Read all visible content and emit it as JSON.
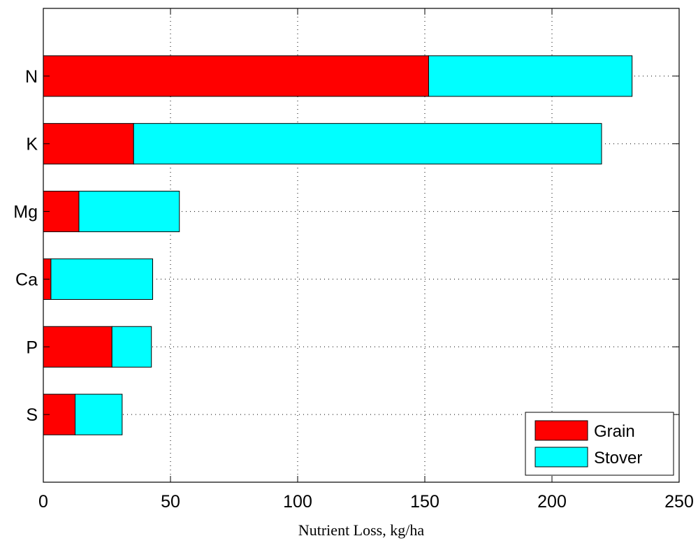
{
  "chart_data": {
    "type": "bar",
    "orientation": "horizontal",
    "stacked": true,
    "categories": [
      "N",
      "K",
      "Mg",
      "Ca",
      "P",
      "S"
    ],
    "series": [
      {
        "name": "Grain",
        "color": "#ff0000",
        "values": [
          151.5,
          35.5,
          14,
          3,
          27,
          12.5
        ]
      },
      {
        "name": "Stover",
        "color": "#00ffff",
        "values": [
          80,
          184,
          39.5,
          40,
          15.5,
          18.5
        ]
      }
    ],
    "title": "",
    "xlabel": "Nutrient Loss, kg/ha",
    "ylabel": "",
    "xlim": [
      0,
      250
    ],
    "xticks": [
      "0",
      "50",
      "100",
      "150",
      "200",
      "250"
    ],
    "grid": true,
    "legend_position": "bottom-right"
  }
}
